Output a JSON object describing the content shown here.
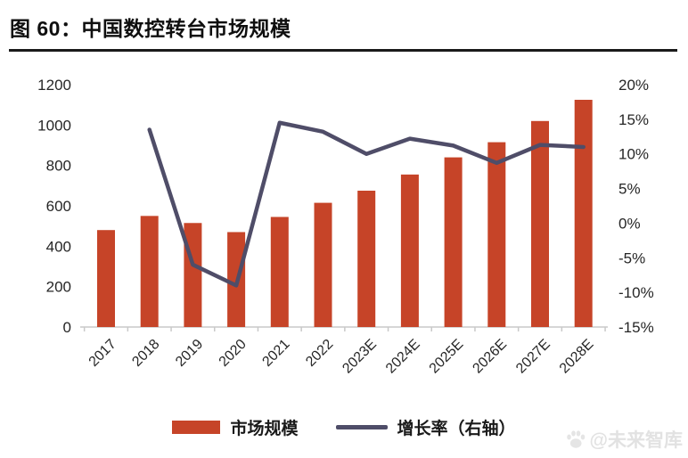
{
  "figure": {
    "title": "图 60：中国数控转台市场规模",
    "watermark": "@未来智库"
  },
  "colors": {
    "bar": "#C64428",
    "line": "#4F4D68",
    "axis_text": "#262626",
    "axis_line": "#C9C9C9",
    "title": "#0F0F0F",
    "watermark": "#E2E2E2"
  },
  "legend": [
    {
      "label": "市场规模",
      "swatch": "bar-swatch"
    },
    {
      "label": "增长率（右轴）",
      "swatch": "line-swatch"
    }
  ],
  "chart_data": {
    "type": "bar+line combo",
    "title": "中国数控转台市场规模",
    "categories": [
      "2017",
      "2018",
      "2019",
      "2020",
      "2021",
      "2022",
      "2023E",
      "2024E",
      "2025E",
      "2026E",
      "2027E",
      "2028E"
    ],
    "series": [
      {
        "name": "市场规模",
        "type": "bar",
        "axis": "left",
        "values": [
          480,
          550,
          515,
          470,
          545,
          615,
          675,
          755,
          840,
          915,
          1020,
          1125
        ]
      },
      {
        "name": "增长率（右轴）",
        "type": "line",
        "axis": "right",
        "values": [
          null,
          13.5,
          -6,
          -9,
          14.5,
          13.2,
          10,
          12.2,
          11.2,
          8.7,
          11.3,
          11
        ]
      }
    ],
    "left_axis": {
      "min": 0,
      "max": 1200,
      "step": 200,
      "tick_values": [
        0,
        200,
        400,
        600,
        800,
        1000,
        1200
      ],
      "tick_labels": [
        "0",
        "200",
        "400",
        "600",
        "800",
        "1000",
        "1200"
      ]
    },
    "right_axis": {
      "min": -15,
      "max": 20,
      "step": 5,
      "tick_values": [
        20,
        15,
        10,
        5,
        0,
        -5,
        -10,
        -15
      ],
      "tick_labels": [
        "20%",
        "15%",
        "10%",
        "5%",
        "0%",
        "-5%",
        "-10%",
        "-15%"
      ]
    },
    "grid": false,
    "legend_position": "bottom",
    "x_label_rotation_deg": -45
  }
}
